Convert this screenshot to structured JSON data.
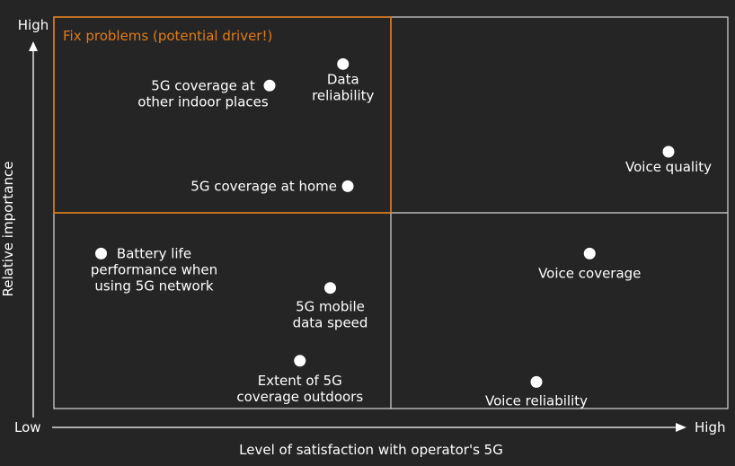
{
  "chart_data": {
    "type": "scatter",
    "title": "",
    "xlabel": "Level of satisfaction with operator's 5G",
    "ylabel": "Relative importance",
    "x_axis_ends": {
      "low": "Low",
      "high": "High"
    },
    "y_axis_ends": {
      "high": "High"
    },
    "xlim": [
      0,
      100
    ],
    "ylim": [
      0,
      100
    ],
    "grid": "2x2 quadrants",
    "highlight_quadrant": {
      "label": "Fix problems (potential driver!)",
      "position": "top-left",
      "color": "#e07b1a"
    },
    "points": [
      {
        "label": "Data reliability",
        "x": 42.9,
        "y": 88.0
      },
      {
        "label": "5G coverage at other indoor places",
        "x": 32.0,
        "y": 82.5
      },
      {
        "label": "Voice quality",
        "x": 91.2,
        "y": 65.6
      },
      {
        "label": "5G coverage at home",
        "x": 43.6,
        "y": 56.8
      },
      {
        "label": "Battery life performance when using 5G network",
        "x": 7.0,
        "y": 39.6
      },
      {
        "label": "Voice coverage",
        "x": 79.5,
        "y": 39.6
      },
      {
        "label": "5G mobile data speed",
        "x": 41.0,
        "y": 30.8
      },
      {
        "label": "Extent of 5G coverage outdoors",
        "x": 36.5,
        "y": 12.2
      },
      {
        "label": "Voice reliability",
        "x": 71.6,
        "y": 6.8
      }
    ]
  },
  "colors": {
    "background": "#252525",
    "grid": "#d8d8d8",
    "highlight": "#e07b1a",
    "points": "#ffffff"
  }
}
